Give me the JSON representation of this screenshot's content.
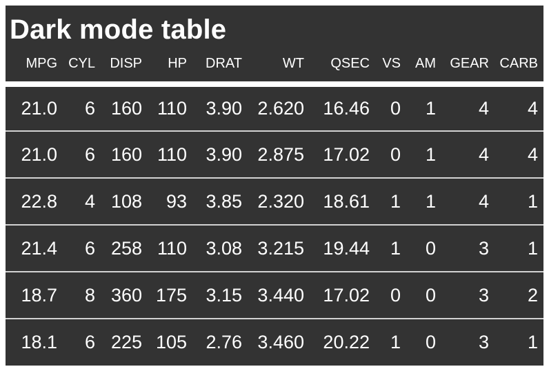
{
  "header": {
    "title": "Dark mode table"
  },
  "chart_data": {
    "type": "table",
    "title": "Dark mode table",
    "columns": [
      "MPG",
      "CYL",
      "DISP",
      "HP",
      "DRAT",
      "WT",
      "QSEC",
      "VS",
      "AM",
      "GEAR",
      "CARB"
    ],
    "rows": [
      [
        "21.0",
        "6",
        "160",
        "110",
        "3.90",
        "2.620",
        "16.46",
        "0",
        "1",
        "4",
        "4"
      ],
      [
        "21.0",
        "6",
        "160",
        "110",
        "3.90",
        "2.875",
        "17.02",
        "0",
        "1",
        "4",
        "4"
      ],
      [
        "22.8",
        "4",
        "108",
        "93",
        "3.85",
        "2.320",
        "18.61",
        "1",
        "1",
        "4",
        "1"
      ],
      [
        "21.4",
        "6",
        "258",
        "110",
        "3.08",
        "3.215",
        "19.44",
        "1",
        "0",
        "3",
        "1"
      ],
      [
        "18.7",
        "8",
        "360",
        "175",
        "3.15",
        "3.440",
        "17.02",
        "0",
        "0",
        "3",
        "2"
      ],
      [
        "18.1",
        "6",
        "225",
        "105",
        "2.76",
        "3.460",
        "20.22",
        "1",
        "0",
        "3",
        "1"
      ]
    ],
    "layout": {
      "alignment": "right",
      "header_position": "top",
      "grid": "horizontal-dividers-only"
    }
  },
  "colors": {
    "page_background": "#ffffff",
    "card_background": "#333333",
    "text": "#ffffff",
    "row_divider": "#d3d3d3",
    "header_gap": "#ffffff"
  }
}
